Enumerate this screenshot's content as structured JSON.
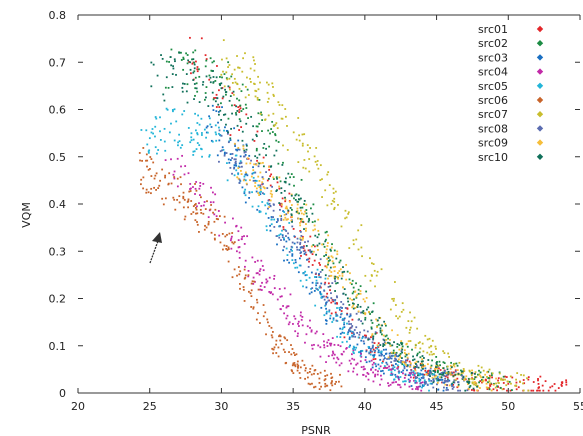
{
  "chart_data": {
    "type": "scatter",
    "xlabel": "PSNR",
    "ylabel": "VQM",
    "xlim": [
      20,
      55
    ],
    "ylim": [
      0,
      0.8
    ],
    "x_ticks": [
      "20",
      "25",
      "30",
      "35",
      "40",
      "45",
      "50",
      "55"
    ],
    "y_ticks": [
      "0",
      "0.1",
      "0.2",
      "0.3",
      "0.4",
      "0.5",
      "0.6",
      "0.7",
      "0.8"
    ],
    "x_tick_values": [
      20,
      25,
      30,
      35,
      40,
      45,
      50,
      55
    ],
    "y_tick_values": [
      0,
      0.1,
      0.2,
      0.3,
      0.4,
      0.5,
      0.6,
      0.7,
      0.8
    ],
    "legend_position": "top-right",
    "marker": "diamond",
    "annotation": {
      "type": "arrow",
      "pointing_to": {
        "x": 25.5,
        "y": 0.34
      }
    },
    "series": [
      {
        "name": "src01",
        "color": "#e3262a",
        "curve": [
          [
            27.8,
            0.73
          ],
          [
            30,
            0.65
          ],
          [
            33,
            0.48
          ],
          [
            36,
            0.3
          ],
          [
            39,
            0.14
          ],
          [
            42,
            0.06
          ],
          [
            46,
            0.03
          ],
          [
            50,
            0.02
          ],
          [
            54,
            0.01
          ]
        ]
      },
      {
        "name": "src02",
        "color": "#1c8c44",
        "curve": [
          [
            26.5,
            0.7
          ],
          [
            30,
            0.66
          ],
          [
            33,
            0.55
          ],
          [
            36,
            0.38
          ],
          [
            39,
            0.22
          ],
          [
            42,
            0.1
          ],
          [
            45,
            0.05
          ],
          [
            50,
            0.02
          ]
        ]
      },
      {
        "name": "src03",
        "color": "#1a6fc2",
        "curve": [
          [
            29,
            0.6
          ],
          [
            31,
            0.5
          ],
          [
            34,
            0.35
          ],
          [
            37,
            0.2
          ],
          [
            40,
            0.09
          ],
          [
            43,
            0.04
          ],
          [
            46,
            0.02
          ]
        ]
      },
      {
        "name": "src04",
        "color": "#c22aa8",
        "curve": [
          [
            26.5,
            0.48
          ],
          [
            29,
            0.4
          ],
          [
            32,
            0.28
          ],
          [
            35,
            0.16
          ],
          [
            38,
            0.08
          ],
          [
            41,
            0.04
          ],
          [
            44,
            0.02
          ]
        ]
      },
      {
        "name": "src05",
        "color": "#23b5d8",
        "curve": [
          [
            24.2,
            0.54
          ],
          [
            27,
            0.56
          ],
          [
            30,
            0.52
          ],
          [
            33,
            0.4
          ],
          [
            36,
            0.25
          ],
          [
            39,
            0.12
          ],
          [
            42,
            0.05
          ],
          [
            45,
            0.02
          ]
        ]
      },
      {
        "name": "src06",
        "color": "#c8642a",
        "curve": [
          [
            24.5,
            0.48
          ],
          [
            26,
            0.44
          ],
          [
            28,
            0.4
          ],
          [
            30,
            0.34
          ],
          [
            32,
            0.22
          ],
          [
            34,
            0.1
          ],
          [
            36,
            0.04
          ],
          [
            38,
            0.02
          ]
        ]
      },
      {
        "name": "src07",
        "color": "#c8bd2e",
        "curve": [
          [
            30,
            0.7
          ],
          [
            32,
            0.66
          ],
          [
            35,
            0.55
          ],
          [
            38,
            0.4
          ],
          [
            41,
            0.24
          ],
          [
            44,
            0.1
          ],
          [
            47,
            0.04
          ],
          [
            51,
            0.02
          ]
        ]
      },
      {
        "name": "src08",
        "color": "#5b6cb0",
        "curve": [
          [
            30,
            0.52
          ],
          [
            32,
            0.46
          ],
          [
            35,
            0.33
          ],
          [
            38,
            0.19
          ],
          [
            41,
            0.09
          ],
          [
            44,
            0.04
          ],
          [
            47,
            0.02
          ]
        ]
      },
      {
        "name": "src09",
        "color": "#f6be3a",
        "curve": [
          [
            31,
            0.5
          ],
          [
            33,
            0.45
          ],
          [
            36,
            0.35
          ],
          [
            39,
            0.22
          ],
          [
            42,
            0.1
          ],
          [
            45,
            0.04
          ],
          [
            49,
            0.02
          ]
        ]
      },
      {
        "name": "src10",
        "color": "#10705a",
        "curve": [
          [
            25,
            0.66
          ],
          [
            27,
            0.68
          ],
          [
            30,
            0.62
          ],
          [
            33,
            0.5
          ],
          [
            36,
            0.35
          ],
          [
            39,
            0.2
          ],
          [
            42,
            0.09
          ],
          [
            45,
            0.04
          ],
          [
            48,
            0.02
          ]
        ]
      }
    ]
  }
}
